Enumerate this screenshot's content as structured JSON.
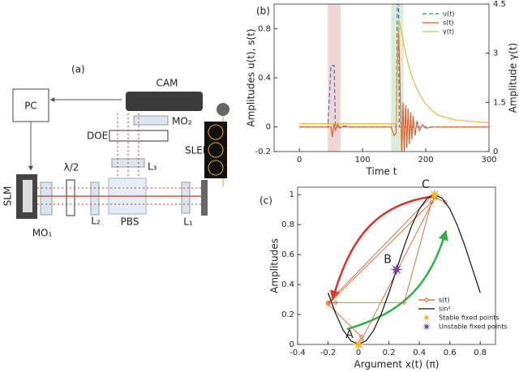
{
  "diagram": {
    "panel_label": "(a)",
    "labels": [
      "PC",
      "CAM",
      "MO₂",
      "DOE",
      "L₃",
      "SLED",
      "SLM",
      "λ/2",
      "MO₁",
      "L₂",
      "PBS",
      "L₁"
    ]
  },
  "chart_data": [
    {
      "type": "line",
      "panel_label": "(b)",
      "xlabel": "Time  t",
      "ylabel": "Amplitudes u(t), s(t)",
      "y2label": "Amplitude γ(t)",
      "xlim": [
        -40,
        300
      ],
      "xticks": [
        0,
        100,
        200,
        300
      ],
      "ylim": [
        -0.2,
        1
      ],
      "yticks": [
        -0.2,
        0,
        0.4,
        0.8
      ],
      "y2lim": [
        0,
        4.5
      ],
      "y2ticks": [
        0,
        1.5,
        3,
        4.5
      ],
      "legend": "upper right",
      "shaded_regions": [
        {
          "x": [
            45,
            65
          ],
          "color": "#ecc9cc"
        },
        {
          "x": [
            145,
            165
          ],
          "color": "#cfe9cf"
        }
      ],
      "x": [
        0,
        45,
        50,
        52,
        55,
        57,
        60,
        65,
        70,
        80,
        100,
        145,
        150,
        153,
        155,
        157,
        158,
        160,
        162,
        164,
        166,
        168,
        170,
        172,
        174,
        176,
        178,
        180,
        183,
        186,
        190,
        195,
        200,
        210,
        220,
        250,
        300
      ],
      "series": [
        {
          "name": "u(t)",
          "color": "#3b78c4",
          "dashed": true,
          "values": [
            0,
            0,
            0.5,
            0.5,
            0.5,
            0,
            0,
            0,
            0,
            0,
            0,
            0,
            0,
            0,
            1,
            1,
            0,
            0,
            0,
            0,
            0,
            0,
            0,
            0,
            0,
            0,
            0,
            0,
            0,
            0,
            0,
            0,
            0,
            0,
            0,
            0,
            0
          ]
        },
        {
          "name": "s(t)",
          "color": "#e0622a",
          "values": [
            0,
            0,
            0,
            -0.08,
            0.03,
            -0.03,
            0.02,
            -0.01,
            0.01,
            0,
            0,
            0,
            -0.07,
            -0.05,
            0.5,
            0.78,
            0.6,
            0.2,
            -0.22,
            0.2,
            -0.2,
            0.18,
            -0.17,
            0.15,
            -0.14,
            0.12,
            -0.1,
            0.09,
            -0.07,
            0.05,
            -0.03,
            0.02,
            -0.01,
            0,
            0,
            0,
            0
          ]
        },
        {
          "name": "γ(t)",
          "color": "#f0b43c",
          "axis": "y2",
          "values": [
            0.85,
            0.85,
            0.85,
            0.85,
            0.85,
            0.85,
            0.85,
            0.85,
            0.85,
            0.85,
            0.85,
            0.85,
            0.85,
            0.85,
            3.0,
            3.9,
            4.0,
            3.8,
            3.6,
            3.4,
            3.2,
            3.0,
            2.85,
            2.7,
            2.55,
            2.4,
            2.3,
            2.2,
            2.05,
            1.9,
            1.75,
            1.6,
            1.45,
            1.25,
            1.1,
            0.95,
            0.88
          ]
        }
      ]
    },
    {
      "type": "line",
      "panel_label": "(c)",
      "xlabel": "Argument  x(t) (π)",
      "ylabel": "Amplitudes",
      "xlim": [
        -0.4,
        0.9
      ],
      "xticks": [
        -0.4,
        -0.2,
        0,
        0.2,
        0.4,
        0.6,
        0.8
      ],
      "ylim": [
        0,
        1.05
      ],
      "yticks": [
        0,
        0.2,
        0.4,
        0.6,
        0.8,
        1
      ],
      "legend": "lower right",
      "series": [
        {
          "name": "s(t)",
          "color": "#e0622a",
          "style": "diamond-line",
          "x": [
            0.02,
            0.5,
            0.57,
            0.48,
            -0.2,
            -0.15,
            0.3,
            0.48,
            -0.2,
            0.02
          ],
          "values": [
            0.03,
            0.98,
            0.95,
            0.99,
            0.28,
            0.28,
            0.28,
            0.95,
            0.27,
            0.05
          ]
        },
        {
          "name": "sin²",
          "color": "#111111",
          "style": "line",
          "x": [
            -0.2,
            -0.15,
            -0.1,
            -0.05,
            0,
            0.05,
            0.1,
            0.15,
            0.2,
            0.25,
            0.3,
            0.35,
            0.4,
            0.45,
            0.5,
            0.55,
            0.6,
            0.65,
            0.7,
            0.75,
            0.8
          ],
          "values": [
            0.345,
            0.206,
            0.095,
            0.024,
            0,
            0.024,
            0.095,
            0.206,
            0.345,
            0.5,
            0.655,
            0.794,
            0.905,
            0.976,
            1,
            0.976,
            0.905,
            0.794,
            0.655,
            0.5,
            0.345
          ]
        },
        {
          "name": "Stable fixed points",
          "color": "#f5b82e",
          "style": "star",
          "x": [
            0,
            0.5
          ],
          "values": [
            0,
            1
          ],
          "labels": [
            "A",
            "C"
          ]
        },
        {
          "name": "Unstable fixed points",
          "color": "#7b3f9e",
          "style": "star",
          "x": [
            0.25
          ],
          "values": [
            0.5
          ],
          "labels": [
            "B"
          ]
        }
      ]
    }
  ]
}
